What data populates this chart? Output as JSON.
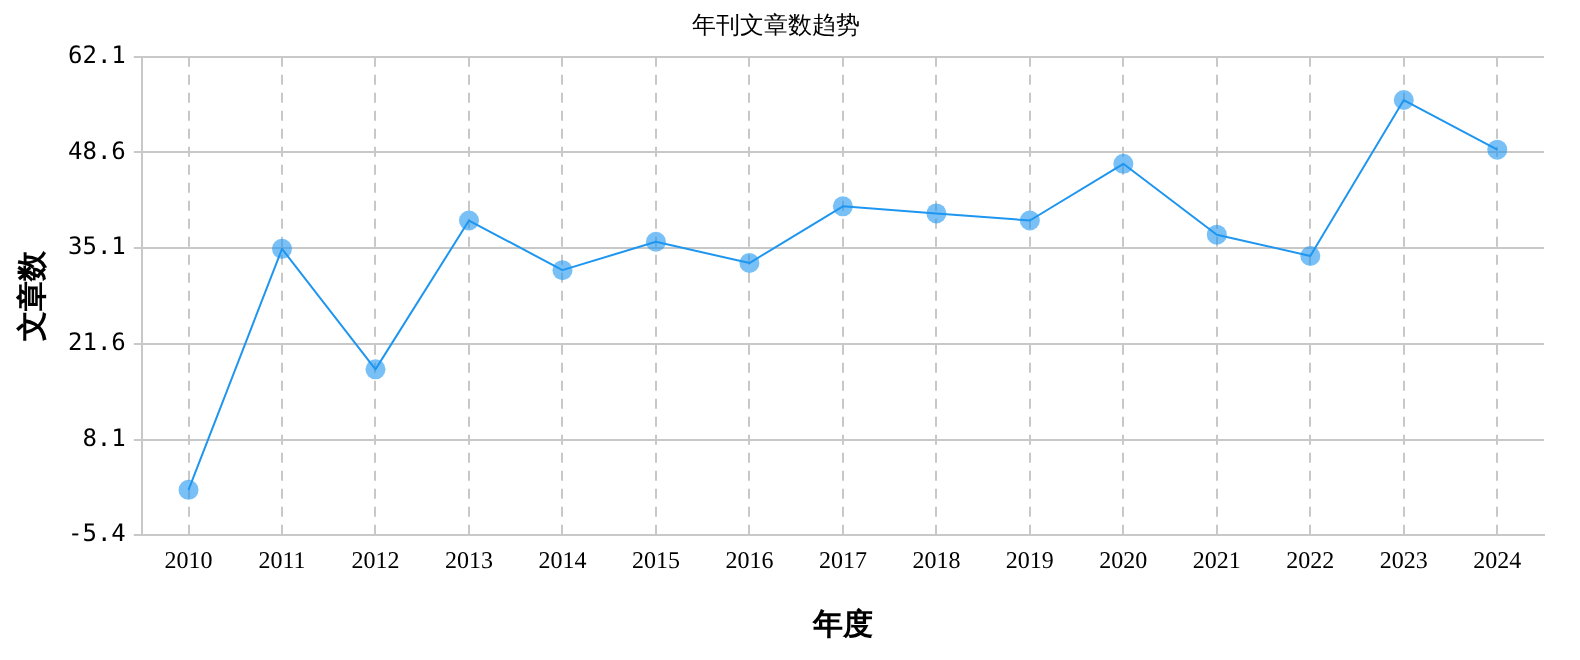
{
  "chart_data": {
    "type": "line",
    "title": "年刊文章数趋势",
    "xlabel": "年度",
    "ylabel": "文章数",
    "categories": [
      "2010",
      "2011",
      "2012",
      "2013",
      "2014",
      "2015",
      "2016",
      "2017",
      "2018",
      "2019",
      "2020",
      "2021",
      "2022",
      "2023",
      "2024"
    ],
    "series": [
      {
        "color": "#1e96f0",
        "values": [
          1,
          35,
          18,
          39,
          32,
          36,
          33,
          41,
          40,
          39,
          47,
          37,
          34,
          56,
          49
        ]
      }
    ],
    "ylim": [
      -5.4,
      62.1
    ],
    "yticks": [
      -5.4,
      8.1,
      21.6,
      35.1,
      48.6,
      62.1
    ],
    "grid": true,
    "legend": false,
    "marker": "circle",
    "line_style": "solid"
  }
}
